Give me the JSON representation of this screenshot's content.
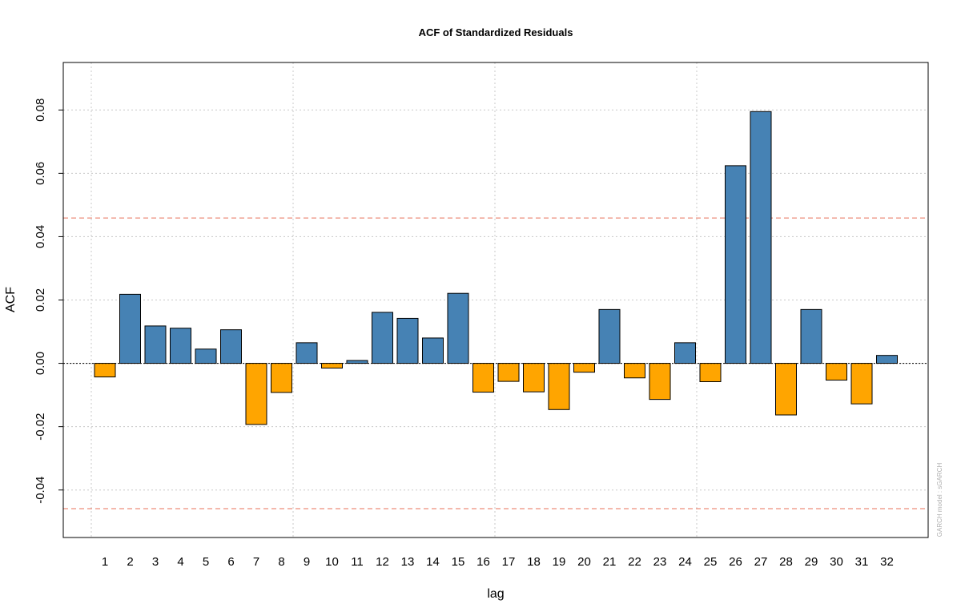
{
  "chart_data": {
    "type": "bar",
    "title": "ACF of Standardized Residuals",
    "xlabel": "lag",
    "ylabel": "ACF",
    "categories": [
      "1",
      "2",
      "3",
      "4",
      "5",
      "6",
      "7",
      "8",
      "9",
      "10",
      "11",
      "12",
      "13",
      "14",
      "15",
      "16",
      "17",
      "18",
      "19",
      "20",
      "21",
      "22",
      "23",
      "24",
      "25",
      "26",
      "27",
      "28",
      "29",
      "30",
      "31",
      "32"
    ],
    "values": [
      -0.0043,
      0.0218,
      0.0118,
      0.0111,
      0.0045,
      0.0106,
      -0.0193,
      -0.0092,
      0.0065,
      -0.0015,
      0.0009,
      0.0161,
      0.0142,
      0.008,
      0.0221,
      -0.0091,
      -0.0057,
      -0.009,
      -0.0146,
      -0.0028,
      0.017,
      -0.0046,
      -0.0114,
      0.0065,
      -0.0058,
      0.0624,
      0.0795,
      -0.0163,
      0.017,
      -0.0053,
      -0.0128,
      0.0025
    ],
    "ylim": [
      -0.055,
      0.095
    ],
    "yticks": [
      "-0.04",
      "-0.02",
      "0.00",
      "0.02",
      "0.04",
      "0.06",
      "0.08"
    ],
    "ytick_values": [
      -0.04,
      -0.02,
      0.0,
      0.02,
      0.04,
      0.06,
      0.08
    ],
    "confidence_bound": 0.0459,
    "grid": true,
    "vertical_grid_lags": [
      1,
      9,
      17,
      25
    ],
    "colors": {
      "positive": "#4682B4",
      "negative": "#FFA500",
      "confidence_line": "#E8705A",
      "grid": "#C8C8C8",
      "bar_border": "#000000"
    },
    "watermark": "GARCH model : sGARCH"
  }
}
